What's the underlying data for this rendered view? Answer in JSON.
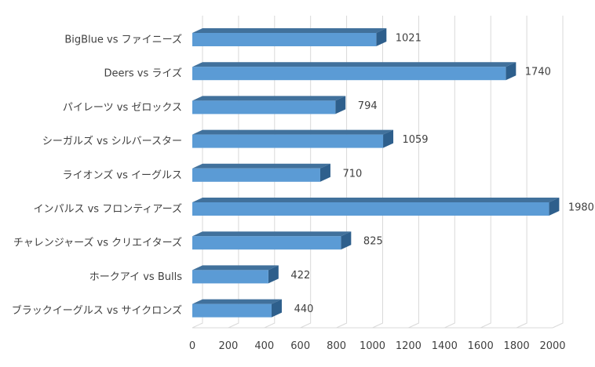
{
  "chart_data": {
    "type": "bar",
    "orientation": "horizontal",
    "style": "3d",
    "categories": [
      "BigBlue vs ファイニーズ",
      "Deers vs ライズ",
      "パイレーツ vs ゼロックス",
      "シーガルズ vs シルバースター",
      "ライオンズ vs イーグルス",
      "インパルス vs フロンティアーズ",
      "チャレンジャーズ vs クリエイターズ",
      "ホークアイ vs Bulls",
      "ブラックイーグルス vs サイクロンズ"
    ],
    "values": [
      1021,
      1740,
      794,
      1059,
      710,
      1980,
      825,
      422,
      440
    ],
    "xlim": [
      0,
      2000
    ],
    "xticks": [
      0,
      200,
      400,
      600,
      800,
      1000,
      1200,
      1400,
      1600,
      1800,
      2000
    ],
    "grid": "vertical",
    "legend": "none",
    "data_labels": true,
    "colors": {
      "bar_front": "#5b9bd5",
      "bar_top": "#41719c",
      "bar_side": "#2e5f8c",
      "grid": "#d9d9d9",
      "text": "#404040"
    }
  }
}
